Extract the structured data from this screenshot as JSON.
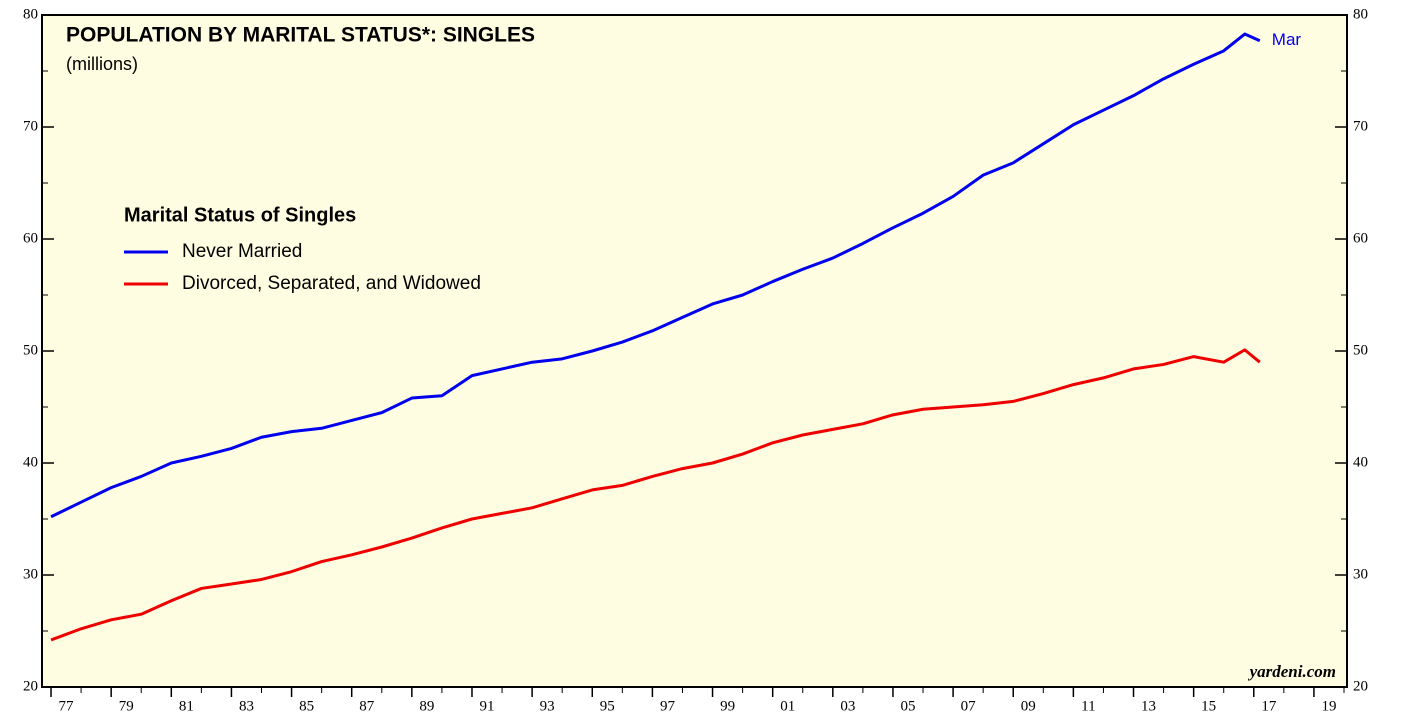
{
  "chart_data": {
    "type": "line",
    "title": "POPULATION BY MARITAL STATUS*: SINGLES",
    "subtitle": "(millions)",
    "legend_title": "Marital Status of Singles",
    "annotation": "Mar",
    "source": "yardeni.com",
    "x": [
      1977,
      1978,
      1979,
      1980,
      1981,
      1982,
      1983,
      1984,
      1985,
      1986,
      1987,
      1988,
      1989,
      1990,
      1991,
      1992,
      1993,
      1994,
      1995,
      1996,
      1997,
      1998,
      1999,
      2000,
      2001,
      2002,
      2003,
      2004,
      2005,
      2006,
      2007,
      2008,
      2009,
      2010,
      2011,
      2012,
      2013,
      2014,
      2015,
      2016,
      2016.7,
      2017.2
    ],
    "series": [
      {
        "name": "Never Married",
        "color": "#0000ee",
        "values": [
          35.2,
          36.5,
          37.8,
          38.8,
          40.0,
          40.6,
          41.3,
          42.3,
          42.8,
          43.1,
          43.8,
          44.5,
          45.8,
          46.0,
          47.8,
          48.4,
          49.0,
          49.3,
          50.0,
          50.8,
          51.8,
          53.0,
          54.2,
          55.0,
          56.2,
          57.3,
          58.3,
          59.6,
          61.0,
          62.3,
          63.8,
          65.7,
          66.8,
          68.5,
          70.2,
          71.5,
          72.8,
          74.3,
          75.6,
          76.8,
          78.3,
          77.7
        ]
      },
      {
        "name": "Divorced, Separated, and Widowed",
        "color": "#ee0000",
        "values": [
          24.2,
          25.2,
          26.0,
          26.5,
          27.7,
          28.8,
          29.2,
          29.6,
          30.3,
          31.2,
          31.8,
          32.5,
          33.3,
          34.2,
          35.0,
          35.5,
          36.0,
          36.8,
          37.6,
          38.0,
          38.8,
          39.5,
          40.0,
          40.8,
          41.8,
          42.5,
          43.0,
          43.5,
          44.3,
          44.8,
          45.0,
          45.2,
          45.5,
          46.2,
          47.0,
          47.6,
          48.4,
          48.8,
          49.5,
          49.0,
          50.1,
          49.0
        ]
      }
    ],
    "xlim": [
      1976.7,
      2020.1
    ],
    "xticks": [
      {
        "value": 1977,
        "label": "77"
      },
      {
        "value": 1979,
        "label": "79"
      },
      {
        "value": 1981,
        "label": "81"
      },
      {
        "value": 1983,
        "label": "83"
      },
      {
        "value": 1985,
        "label": "85"
      },
      {
        "value": 1987,
        "label": "87"
      },
      {
        "value": 1989,
        "label": "89"
      },
      {
        "value": 1991,
        "label": "91"
      },
      {
        "value": 1993,
        "label": "93"
      },
      {
        "value": 1995,
        "label": "95"
      },
      {
        "value": 1997,
        "label": "97"
      },
      {
        "value": 1999,
        "label": "99"
      },
      {
        "value": 2001,
        "label": "01"
      },
      {
        "value": 2003,
        "label": "03"
      },
      {
        "value": 2005,
        "label": "05"
      },
      {
        "value": 2007,
        "label": "07"
      },
      {
        "value": 2009,
        "label": "09"
      },
      {
        "value": 2011,
        "label": "11"
      },
      {
        "value": 2013,
        "label": "13"
      },
      {
        "value": 2015,
        "label": "15"
      },
      {
        "value": 2017,
        "label": "17"
      },
      {
        "value": 2019,
        "label": "19"
      }
    ],
    "ylim": [
      20,
      80
    ],
    "yticks": [
      20,
      30,
      40,
      50,
      60,
      70,
      80
    ],
    "grid": false
  }
}
